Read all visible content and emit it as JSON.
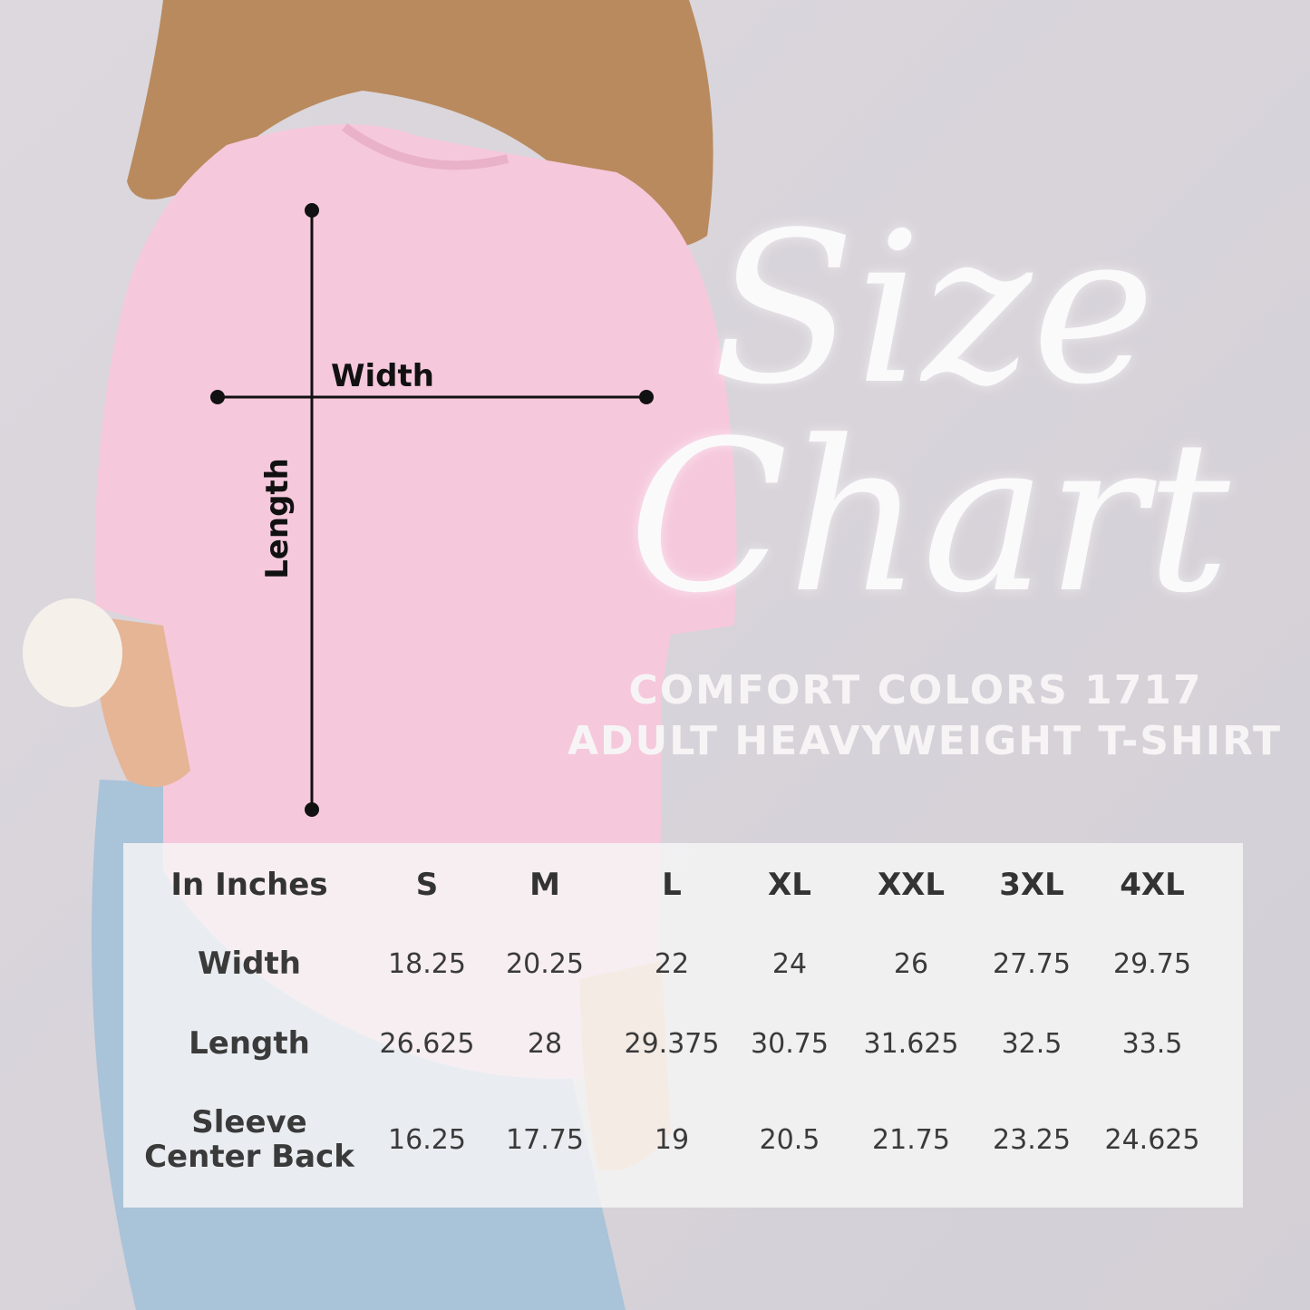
{
  "title": [
    "Size",
    "Chart"
  ],
  "subtitle": [
    "COMFORT COLORS 1717",
    "ADULT HEAVYWEIGHT T-SHIRT"
  ],
  "diagram": {
    "width_label": "Width",
    "length_label": "Length"
  },
  "table": {
    "header": [
      "In Inches",
      "S",
      "M",
      "L",
      "XL",
      "XXL",
      "3XL",
      "4XL"
    ],
    "rows": [
      {
        "label": [
          "Width"
        ],
        "values": [
          "18.25",
          "20.25",
          "22",
          "24",
          "26",
          "27.75",
          "29.75"
        ]
      },
      {
        "label": [
          "Length"
        ],
        "values": [
          "26.625",
          "28",
          "29.375",
          "30.75",
          "31.625",
          "32.5",
          "33.5"
        ]
      },
      {
        "label": [
          "Sleeve",
          "Center Back"
        ],
        "values": [
          "16.25",
          "17.75",
          "19",
          "20.5",
          "21.75",
          "23.25",
          "24.625"
        ]
      }
    ]
  }
}
